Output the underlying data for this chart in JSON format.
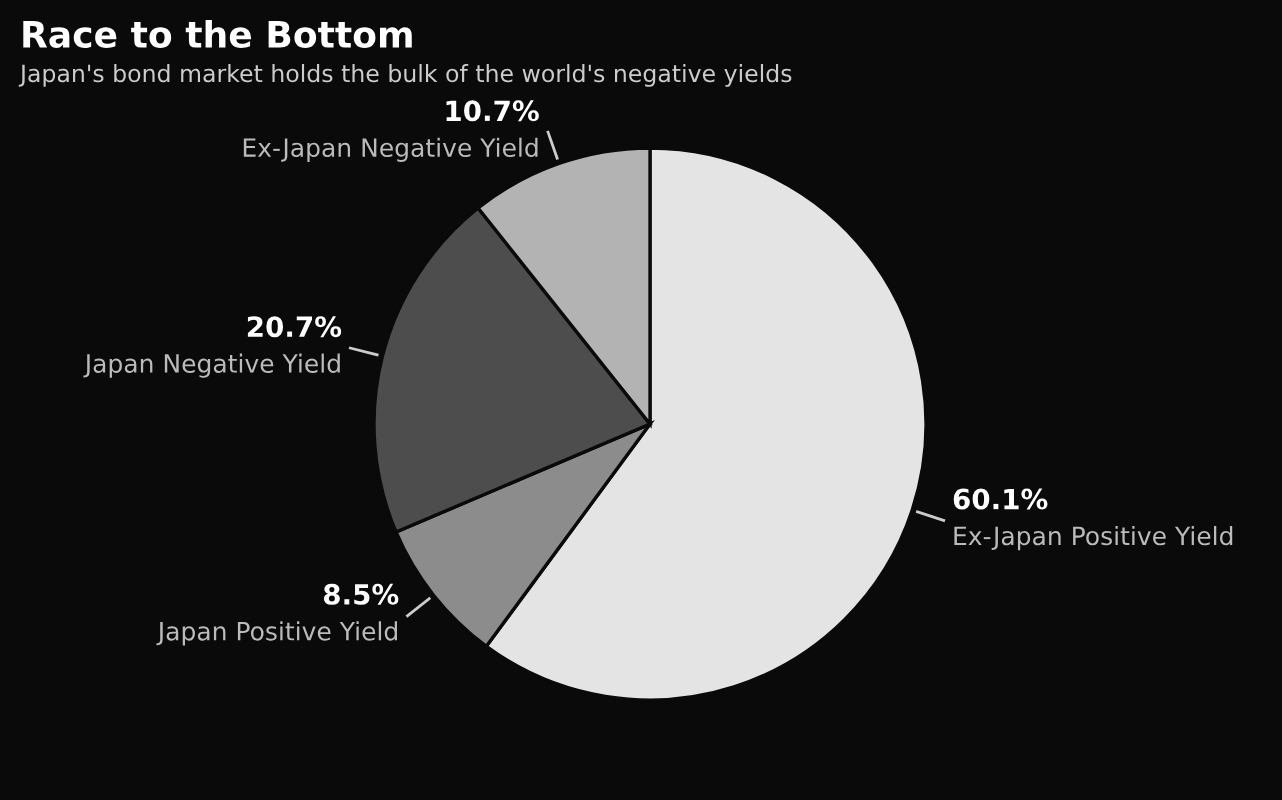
{
  "chart_data": {
    "type": "pie",
    "title": "Race to the Bottom",
    "subtitle": "Japan's bond market holds the bulk of the world's negative yields",
    "categories": [
      "Ex-Japan Positive Yield",
      "Japan Positive Yield",
      "Japan Negative Yield",
      "Ex-Japan Negative Yield"
    ],
    "values": [
      60.1,
      8.5,
      20.7,
      10.7
    ],
    "colors": [
      "#e4e4e4",
      "#8c8c8c",
      "#4d4d4d",
      "#b3b3b3"
    ],
    "value_labels": [
      "60.1%",
      "8.5%",
      "20.7%",
      "10.7%"
    ],
    "legend": false
  }
}
